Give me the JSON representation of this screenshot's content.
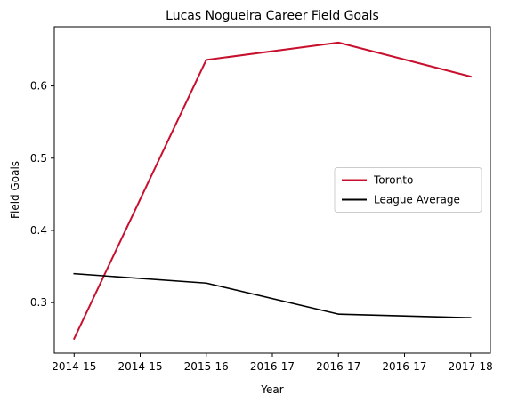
{
  "chart_data": {
    "type": "line",
    "title": "Lucas Nogueira Career Field Goals",
    "xlabel": "Year",
    "ylabel": "Field Goals",
    "x_tick_labels": [
      "2014-15",
      "2014-15",
      "2015-16",
      "2016-17",
      "2016-17",
      "2016-17",
      "2017-18"
    ],
    "x_tick_positions": [
      0,
      0.5,
      1,
      1.5,
      2,
      2.5,
      3
    ],
    "x": [
      0,
      1,
      2,
      3
    ],
    "xlim": [
      -0.15,
      3.15
    ],
    "ylim": [
      0.23,
      0.682
    ],
    "y_ticks": [
      0.3,
      0.4,
      0.5,
      0.6
    ],
    "y_tick_labels": [
      "0.3",
      "0.4",
      "0.5",
      "0.6"
    ],
    "grid": false,
    "legend_position": "center-right",
    "series": [
      {
        "name": "Toronto",
        "color": "#c8102e",
        "linewidth": 2,
        "values": [
          0.25,
          0.636,
          0.66,
          0.613
        ]
      },
      {
        "name": "League Average",
        "color": "#000000",
        "linewidth": 1.6,
        "values": [
          0.34,
          0.327,
          0.284,
          0.279
        ]
      }
    ]
  }
}
